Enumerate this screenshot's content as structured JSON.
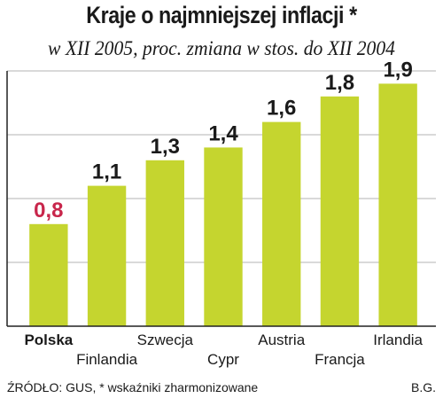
{
  "chart_data": {
    "type": "bar",
    "title": "Kraje o najmniejszej inflacji *",
    "subtitle": "w XII 2005, proc. zmiana w stos. do XII 2004",
    "categories": [
      "Polska",
      "Finlandia",
      "Szwecja",
      "Cypr",
      "Austria",
      "Francja",
      "Irlandia"
    ],
    "values": [
      0.8,
      1.1,
      1.3,
      1.4,
      1.6,
      1.8,
      1.9
    ],
    "value_labels": [
      "0,8",
      "1,1",
      "1,3",
      "1,4",
      "1,6",
      "1,8",
      "1,9"
    ],
    "ylim": [
      0,
      2.0
    ],
    "grid": true,
    "xlabel": "",
    "ylabel": "",
    "colors": {
      "bar": "#c5d52f",
      "highlight_label": "#c8264b",
      "label": "#1a1a1a",
      "grid": "#b3b3b3",
      "axis": "#222222"
    },
    "highlight_index": 0
  },
  "footer": {
    "source": "ŹRÓDŁO: GUS, * wskaźniki zharmonizowane",
    "author": "B.G."
  }
}
